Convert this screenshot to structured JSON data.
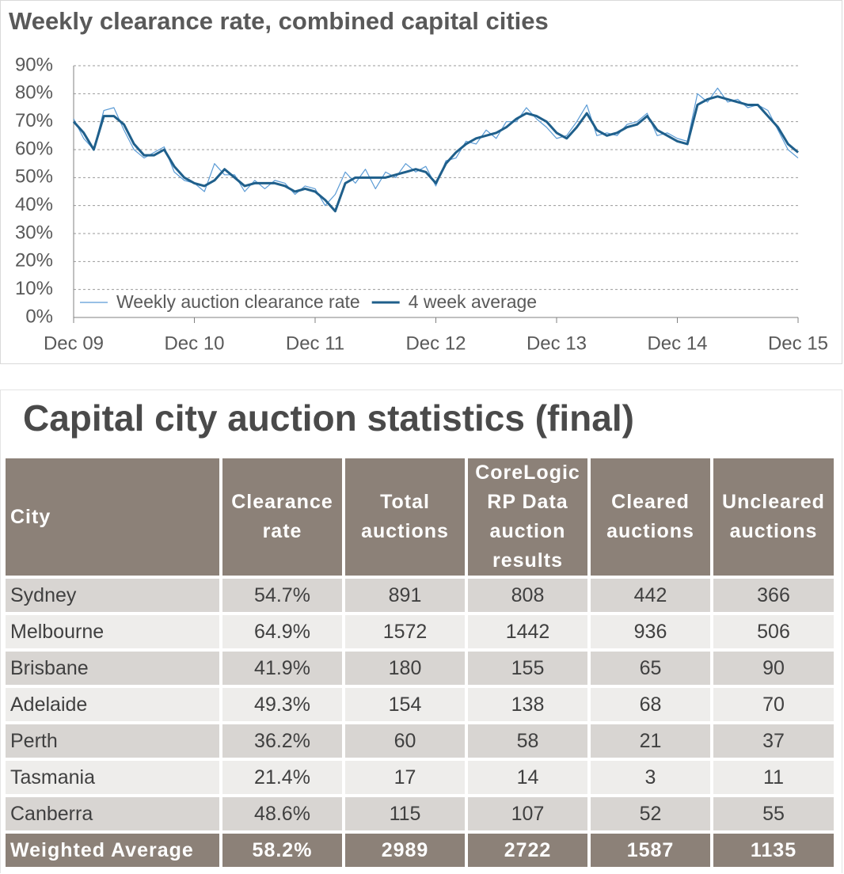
{
  "chart_data": {
    "type": "line",
    "title": "Weekly clearance rate, combined capital cities",
    "x": [
      0,
      1,
      2,
      3,
      4,
      5,
      6,
      7,
      8,
      9,
      10,
      11,
      12,
      13,
      14,
      15,
      16,
      17,
      18,
      19,
      20,
      21,
      22,
      23,
      24,
      25,
      26,
      27,
      28,
      29,
      30,
      31,
      32,
      33,
      34,
      35,
      36,
      37,
      38,
      39,
      40,
      41,
      42,
      43,
      44,
      45,
      46,
      47,
      48,
      49,
      50,
      51,
      52,
      53,
      54,
      55,
      56,
      57,
      58,
      59,
      60,
      61,
      62,
      63,
      64,
      65,
      66,
      67,
      68,
      69,
      70,
      71,
      72
    ],
    "series": [
      {
        "name": "Weekly auction clearance rate",
        "color": "#5b9bd5",
        "values": [
          71,
          64,
          60,
          74,
          75,
          67,
          60,
          57,
          59,
          61,
          52,
          49,
          48,
          45,
          55,
          51,
          51,
          45,
          49,
          46,
          49,
          48,
          44,
          47,
          46,
          40,
          44,
          52,
          48,
          53,
          46,
          52,
          50,
          55,
          52,
          54,
          47,
          56,
          57,
          63,
          62,
          67,
          64,
          70,
          70,
          75,
          71,
          68,
          64,
          65,
          70,
          76,
          65,
          66,
          65,
          69,
          70,
          73,
          65,
          66,
          64,
          63,
          80,
          77,
          82,
          77,
          78,
          75,
          76,
          74,
          67,
          60,
          57
        ]
      },
      {
        "name": "4 week average",
        "color": "#1f5f8b",
        "values": [
          70,
          66,
          60,
          72,
          72,
          69,
          62,
          58,
          58,
          60,
          54,
          50,
          48,
          47,
          49,
          53,
          50,
          47,
          48,
          48,
          48,
          47,
          45,
          46,
          45,
          42,
          38,
          48,
          50,
          50,
          50,
          50,
          51,
          52,
          53,
          52,
          48,
          55,
          59,
          62,
          64,
          65,
          66,
          68,
          71,
          73,
          72,
          70,
          66,
          64,
          68,
          73,
          67,
          65,
          66,
          68,
          69,
          72,
          67,
          65,
          63,
          62,
          76,
          78,
          79,
          78,
          77,
          76,
          76,
          72,
          68,
          62,
          59
        ]
      }
    ],
    "xlim": [
      0,
      72
    ],
    "xticks": [
      {
        "value": 0,
        "label": "Dec 09"
      },
      {
        "value": 12,
        "label": "Dec 10"
      },
      {
        "value": 24,
        "label": "Dec 11"
      },
      {
        "value": 36,
        "label": "Dec 12"
      },
      {
        "value": 48,
        "label": "Dec 13"
      },
      {
        "value": 60,
        "label": "Dec 14"
      },
      {
        "value": 72,
        "label": "Dec 15"
      }
    ],
    "ylim": [
      0,
      90
    ],
    "yticks": [
      {
        "value": 0,
        "label": "0%"
      },
      {
        "value": 10,
        "label": "10%"
      },
      {
        "value": 20,
        "label": "20%"
      },
      {
        "value": 30,
        "label": "30%"
      },
      {
        "value": 40,
        "label": "40%"
      },
      {
        "value": 50,
        "label": "50%"
      },
      {
        "value": 60,
        "label": "60%"
      },
      {
        "value": 70,
        "label": "70%"
      },
      {
        "value": 80,
        "label": "80%"
      },
      {
        "value": 90,
        "label": "90%"
      }
    ],
    "grid": true,
    "legend": "bottom-left"
  },
  "table": {
    "title": "Capital city auction statistics (final)",
    "header": [
      "City",
      "Clearance rate",
      "Total auctions",
      "CoreLogic RP Data auction results",
      "Cleared auctions",
      "Uncleared auctions"
    ],
    "rows": [
      [
        "Sydney",
        "54.7%",
        "891",
        "808",
        "442",
        "366"
      ],
      [
        "Melbourne",
        "64.9%",
        "1572",
        "1442",
        "936",
        "506"
      ],
      [
        "Brisbane",
        "41.9%",
        "180",
        "155",
        "65",
        "90"
      ],
      [
        "Adelaide",
        "49.3%",
        "154",
        "138",
        "68",
        "70"
      ],
      [
        "Perth",
        "36.2%",
        "60",
        "58",
        "21",
        "37"
      ],
      [
        "Tasmania",
        "21.4%",
        "17",
        "14",
        "3",
        "11"
      ],
      [
        "Canberra",
        "48.6%",
        "115",
        "107",
        "52",
        "55"
      ]
    ],
    "footer": [
      "Weighted Average",
      "58.2%",
      "2989",
      "2722",
      "1587",
      "1135"
    ]
  }
}
